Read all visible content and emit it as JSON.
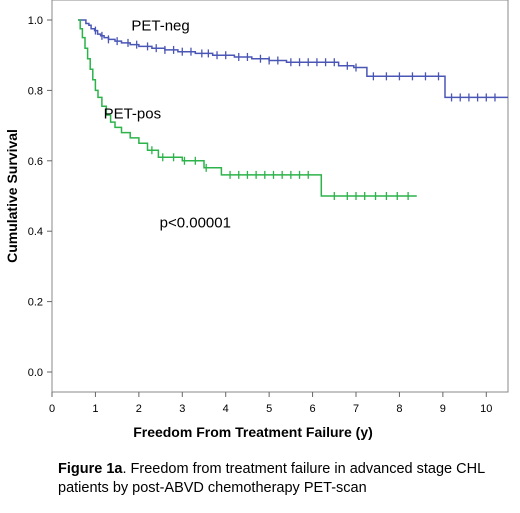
{
  "chart_data": {
    "type": "line",
    "subtype": "kaplan-meier",
    "xlabel": "Freedom From Treatment Failure (y)",
    "ylabel": "Cumulative Survival",
    "xlim": [
      0,
      10.5
    ],
    "ylim": [
      0,
      1.05
    ],
    "xticks": [
      0,
      1,
      2,
      3,
      4,
      5,
      6,
      7,
      8,
      9,
      10
    ],
    "yticks": [
      0.0,
      0.2,
      0.4,
      0.6,
      0.8,
      1.0
    ],
    "ytick_labels": [
      "0.0",
      "0.2",
      "0.4",
      "0.6",
      "0.8",
      "1.0"
    ],
    "grid": false,
    "series": [
      {
        "name": "PET-neg",
        "color": "#4a56b5",
        "steps": [
          [
            0.6,
            1.0
          ],
          [
            0.78,
            0.99
          ],
          [
            0.85,
            0.985
          ],
          [
            0.9,
            0.975
          ],
          [
            0.98,
            0.97
          ],
          [
            1.05,
            0.96
          ],
          [
            1.12,
            0.955
          ],
          [
            1.2,
            0.95
          ],
          [
            1.3,
            0.945
          ],
          [
            1.45,
            0.94
          ],
          [
            1.6,
            0.935
          ],
          [
            1.8,
            0.93
          ],
          [
            2.0,
            0.925
          ],
          [
            2.3,
            0.92
          ],
          [
            2.6,
            0.915
          ],
          [
            2.9,
            0.91
          ],
          [
            3.3,
            0.905
          ],
          [
            3.7,
            0.9
          ],
          [
            4.2,
            0.895
          ],
          [
            4.6,
            0.89
          ],
          [
            5.0,
            0.885
          ],
          [
            5.4,
            0.88
          ],
          [
            6.6,
            0.87
          ],
          [
            6.95,
            0.865
          ],
          [
            7.25,
            0.84
          ],
          [
            9.05,
            0.78
          ],
          [
            10.5,
            0.78
          ]
        ],
        "censors": [
          1.0,
          1.15,
          1.3,
          1.5,
          1.75,
          1.95,
          2.2,
          2.4,
          2.6,
          2.8,
          3.0,
          3.2,
          3.45,
          3.6,
          3.8,
          4.0,
          4.3,
          4.5,
          4.8,
          5.0,
          5.2,
          5.5,
          5.7,
          5.9,
          6.1,
          6.3,
          6.5,
          6.8,
          7.0,
          7.4,
          7.7,
          8.0,
          8.3,
          8.6,
          8.9,
          9.2,
          9.4,
          9.6,
          9.8,
          10.0,
          10.2
        ]
      },
      {
        "name": "PET-pos",
        "color": "#2cb34a",
        "steps": [
          [
            0.6,
            1.0
          ],
          [
            0.65,
            0.975
          ],
          [
            0.7,
            0.95
          ],
          [
            0.76,
            0.92
          ],
          [
            0.82,
            0.89
          ],
          [
            0.88,
            0.86
          ],
          [
            0.94,
            0.83
          ],
          [
            1.0,
            0.8
          ],
          [
            1.06,
            0.78
          ],
          [
            1.15,
            0.755
          ],
          [
            1.25,
            0.73
          ],
          [
            1.35,
            0.71
          ],
          [
            1.45,
            0.695
          ],
          [
            1.6,
            0.68
          ],
          [
            1.8,
            0.665
          ],
          [
            2.0,
            0.65
          ],
          [
            2.2,
            0.63
          ],
          [
            2.45,
            0.61
          ],
          [
            3.0,
            0.6
          ],
          [
            3.5,
            0.58
          ],
          [
            3.9,
            0.56
          ],
          [
            6.2,
            0.5
          ],
          [
            8.4,
            0.5
          ]
        ],
        "censors": [
          2.3,
          2.55,
          2.8,
          3.05,
          3.3,
          3.55,
          4.1,
          4.3,
          4.5,
          4.7,
          4.9,
          5.1,
          5.3,
          5.5,
          5.7,
          5.9,
          6.5,
          6.8,
          7.0,
          7.2,
          7.45,
          7.7,
          7.95,
          8.2
        ]
      }
    ],
    "annotations": [
      {
        "text": "PET-neg",
        "x": 2.5,
        "y": 0.985
      },
      {
        "text": "PET-pos",
        "x": 1.85,
        "y": 0.735
      },
      {
        "text": "p<0.00001",
        "x": 3.3,
        "y": 0.425
      }
    ]
  },
  "caption": {
    "bold": "Figure 1a",
    "text": ". Freedom from treatment failure in advanced stage CHL patients by post-ABVD chemotherapy PET-scan"
  }
}
